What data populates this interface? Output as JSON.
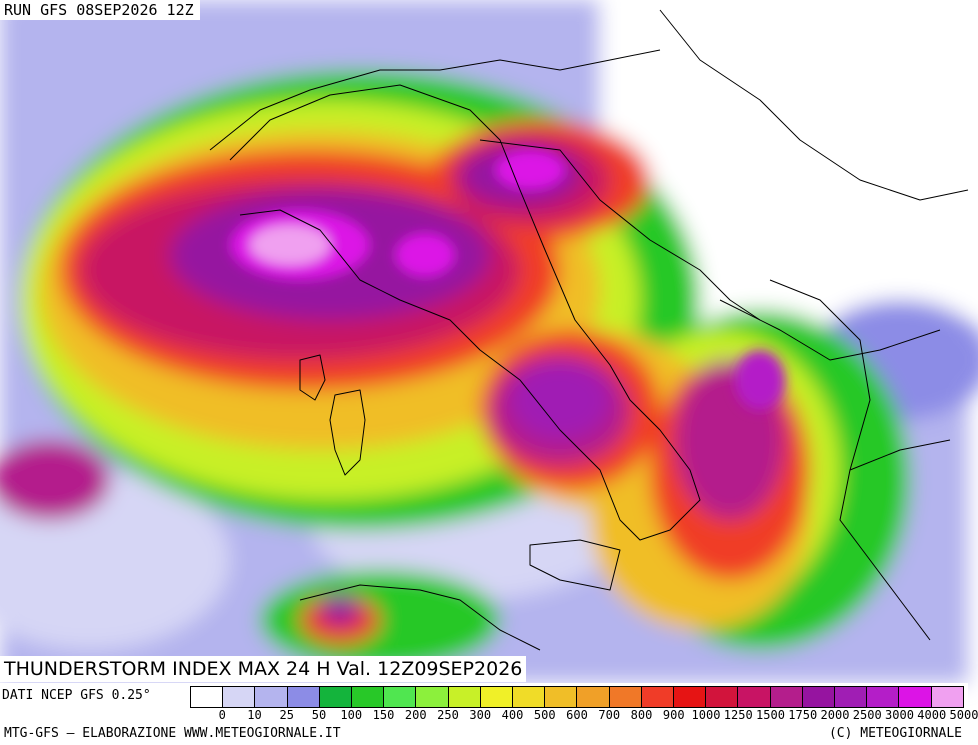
{
  "header": {
    "run_label": "RUN GFS 08SEP2026 12Z"
  },
  "map": {
    "parameter_title": "THUNDERSTORM INDEX MAX 24 H Val. 12Z09SEP2026",
    "colors": {
      "land": "#ffffff",
      "border": "#000000"
    }
  },
  "legend": {
    "source": "DATI NCEP GFS 0.25°",
    "tick_labels": [
      "0",
      "10",
      "25",
      "50",
      "100",
      "150",
      "200",
      "250",
      "300",
      "400",
      "500",
      "600",
      "700",
      "800",
      "900",
      "1000",
      "1250",
      "1500",
      "1750",
      "2000",
      "2500",
      "3000",
      "4000",
      "5000"
    ],
    "colors": [
      "#ffffff",
      "#d6d6f5",
      "#b4b4ee",
      "#8c8ce6",
      "#14b43c",
      "#28c828",
      "#50e650",
      "#8cf03c",
      "#c8f028",
      "#f0f028",
      "#f0dc28",
      "#f0be28",
      "#f0a028",
      "#f07828",
      "#f03c28",
      "#e61414",
      "#d2143c",
      "#c81464",
      "#b41e8c",
      "#9614a0",
      "#a01eb4",
      "#b41ec8",
      "#dc14e6",
      "#f0a0f0"
    ]
  },
  "footer": {
    "credit": "MTG-GFS – ELABORAZIONE WWW.METEOGIORNALE.IT",
    "copyright": "(C) METEOGIORNALE"
  }
}
